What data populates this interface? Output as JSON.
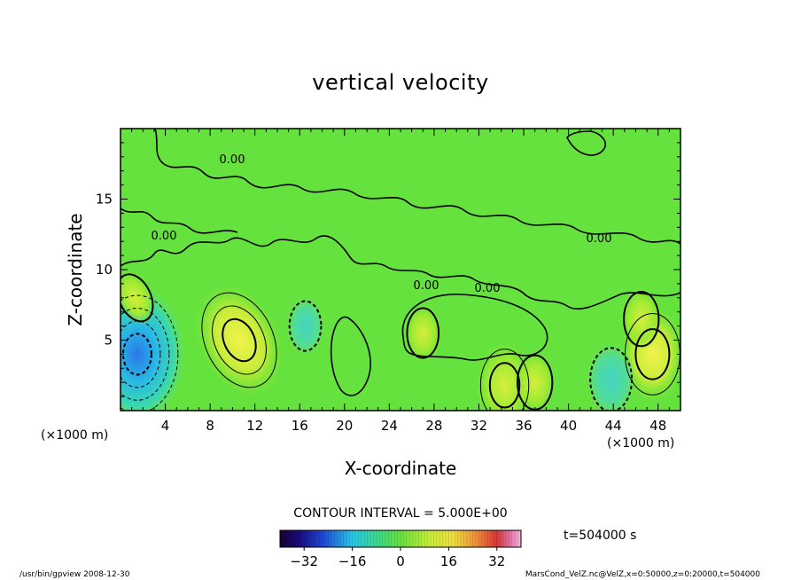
{
  "chart_data": {
    "type": "heatmap",
    "title": "vertical velocity",
    "xlabel": "X-coordinate",
    "ylabel": "Z-coordinate",
    "x_unit_left": "(×1000 m)",
    "x_unit_right": "(×1000 m)",
    "xlim": [
      0,
      50
    ],
    "ylim": [
      0,
      20
    ],
    "x_ticks": [
      4,
      8,
      12,
      16,
      20,
      24,
      28,
      32,
      36,
      40,
      44,
      48
    ],
    "y_ticks": [
      5,
      10,
      15
    ],
    "contour_interval": "CONTOUR INTERVAL = 5.000E+00",
    "time": "t=504000 s",
    "zero_contour_label": "0.00",
    "colorbar": {
      "range": [
        -40,
        40
      ],
      "ticks": [
        "−32",
        "−16",
        "0",
        "16",
        "32"
      ],
      "tick_values": [
        -32,
        -16,
        0,
        16,
        32
      ],
      "colormap": "rainbow (dark blue → green → red → pink)"
    },
    "features": [
      {
        "x": 10.6,
        "z": 5.0,
        "value": 16,
        "sign": "updraft"
      },
      {
        "x": 1.5,
        "z": 4.0,
        "value": -20,
        "sign": "downdraft"
      },
      {
        "x": 34.3,
        "z": 1.8,
        "value": 10,
        "sign": "updraft"
      },
      {
        "x": 47.5,
        "z": 4.0,
        "value": 12,
        "sign": "updraft"
      },
      {
        "x": 43.8,
        "z": 2.2,
        "value": -8,
        "sign": "downdraft"
      },
      {
        "x": 1.3,
        "z": 8.0,
        "value": 5,
        "sign": "updraft"
      },
      {
        "x": 27.0,
        "z": 5.5,
        "value": 5,
        "sign": "updraft"
      },
      {
        "x": 46.5,
        "z": 6.5,
        "value": 6,
        "sign": "updraft"
      },
      {
        "x": 16.5,
        "z": 6.0,
        "value": -5,
        "sign": "downdraft"
      },
      {
        "x": 37.0,
        "z": 2.0,
        "value": 6,
        "sign": "updraft"
      }
    ]
  },
  "footer": {
    "left": "/usr/bin/gpview   2008-12-30",
    "right": "MarsCond_VelZ.nc@VelZ,x=0:50000,z=0:20000,t=504000"
  }
}
